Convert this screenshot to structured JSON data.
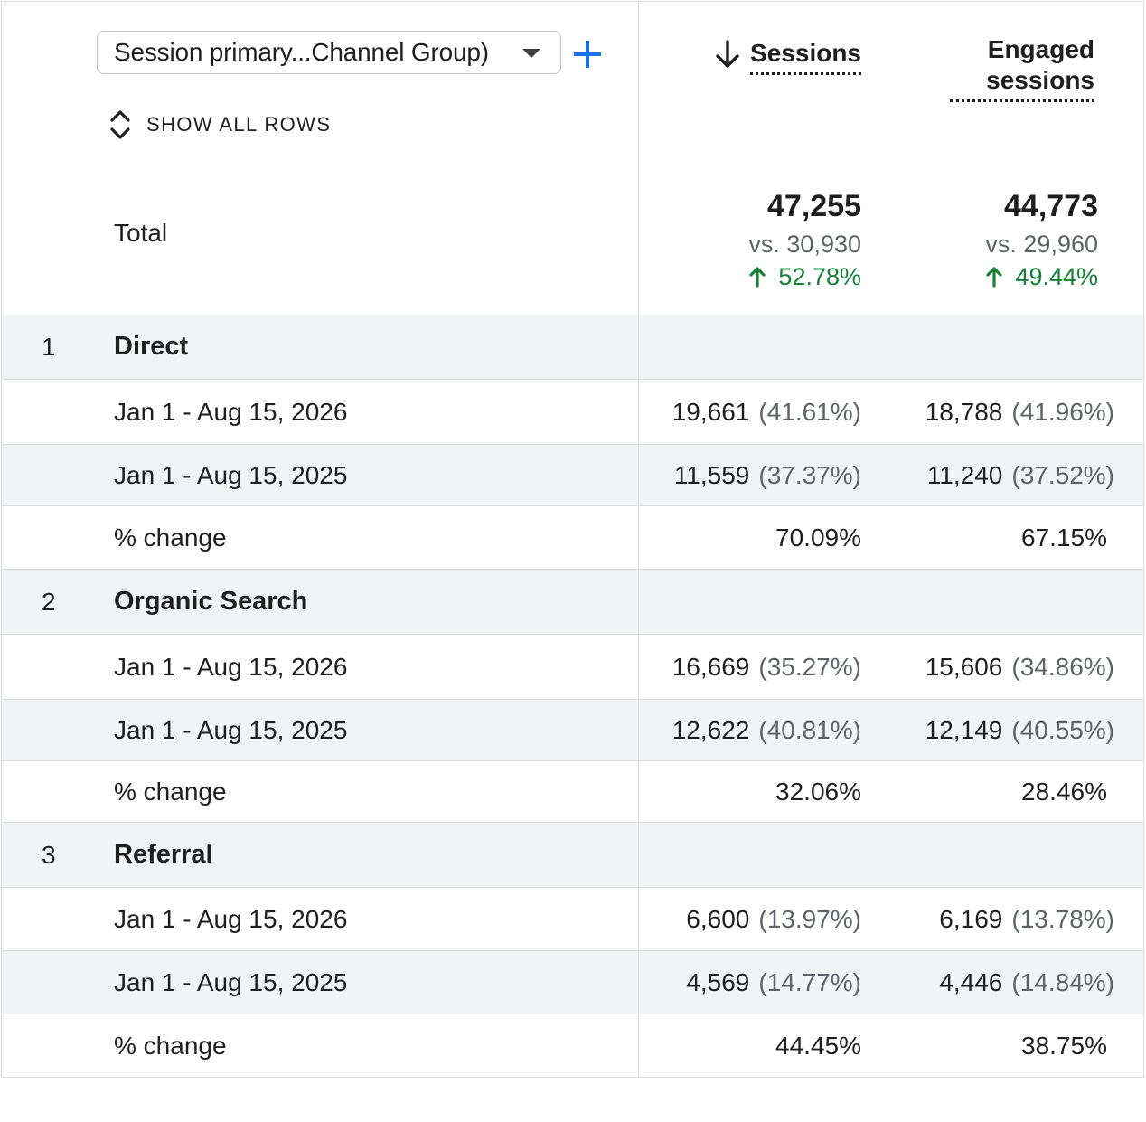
{
  "dimension_selector": {
    "label": "Session primary...Channel Group)"
  },
  "add_dimension_icon": "plus-icon",
  "show_all_rows": {
    "label": "SHOW ALL ROWS",
    "icon": "unfold-icon"
  },
  "columns": [
    {
      "label": "Sessions",
      "sort_icon": "arrow-down-icon"
    },
    {
      "label": "Engaged sessions"
    }
  ],
  "total": {
    "label": "Total",
    "values": [
      {
        "value": "47,255",
        "previous": "vs. 30,930",
        "change": "52.78%"
      },
      {
        "value": "44,773",
        "previous": "vs. 29,960",
        "change": "49.44%"
      }
    ]
  },
  "colors": {
    "accent": "#1a73e8",
    "positive": "#188038",
    "row_shade": "#f1f3f4",
    "border": "#dadce0"
  },
  "groups": [
    {
      "rank": "1",
      "name": "Direct",
      "rows": [
        {
          "label": "Jan 1 - Aug 15, 2026",
          "sessions": "19,661",
          "sessions_pct": "(41.61%)",
          "engaged": "18,788",
          "engaged_pct": "(41.96%)"
        },
        {
          "label": "Jan 1 - Aug 15, 2025",
          "sessions": "11,559",
          "sessions_pct": "(37.37%)",
          "engaged": "11,240",
          "engaged_pct": "(37.52%)"
        }
      ],
      "change": {
        "label": "% change",
        "sessions": "70.09%",
        "engaged": "67.15%"
      }
    },
    {
      "rank": "2",
      "name": "Organic Search",
      "rows": [
        {
          "label": "Jan 1 - Aug 15, 2026",
          "sessions": "16,669",
          "sessions_pct": "(35.27%)",
          "engaged": "15,606",
          "engaged_pct": "(34.86%)"
        },
        {
          "label": "Jan 1 - Aug 15, 2025",
          "sessions": "12,622",
          "sessions_pct": "(40.81%)",
          "engaged": "12,149",
          "engaged_pct": "(40.55%)"
        }
      ],
      "change": {
        "label": "% change",
        "sessions": "32.06%",
        "engaged": "28.46%"
      }
    },
    {
      "rank": "3",
      "name": "Referral",
      "rows": [
        {
          "label": "Jan 1 - Aug 15, 2026",
          "sessions": "6,600",
          "sessions_pct": "(13.97%)",
          "engaged": "6,169",
          "engaged_pct": "(13.78%)"
        },
        {
          "label": "Jan 1 - Aug 15, 2025",
          "sessions": "4,569",
          "sessions_pct": "(14.77%)",
          "engaged": "4,446",
          "engaged_pct": "(14.84%)"
        }
      ],
      "change": {
        "label": "% change",
        "sessions": "44.45%",
        "engaged": "38.75%"
      }
    }
  ]
}
